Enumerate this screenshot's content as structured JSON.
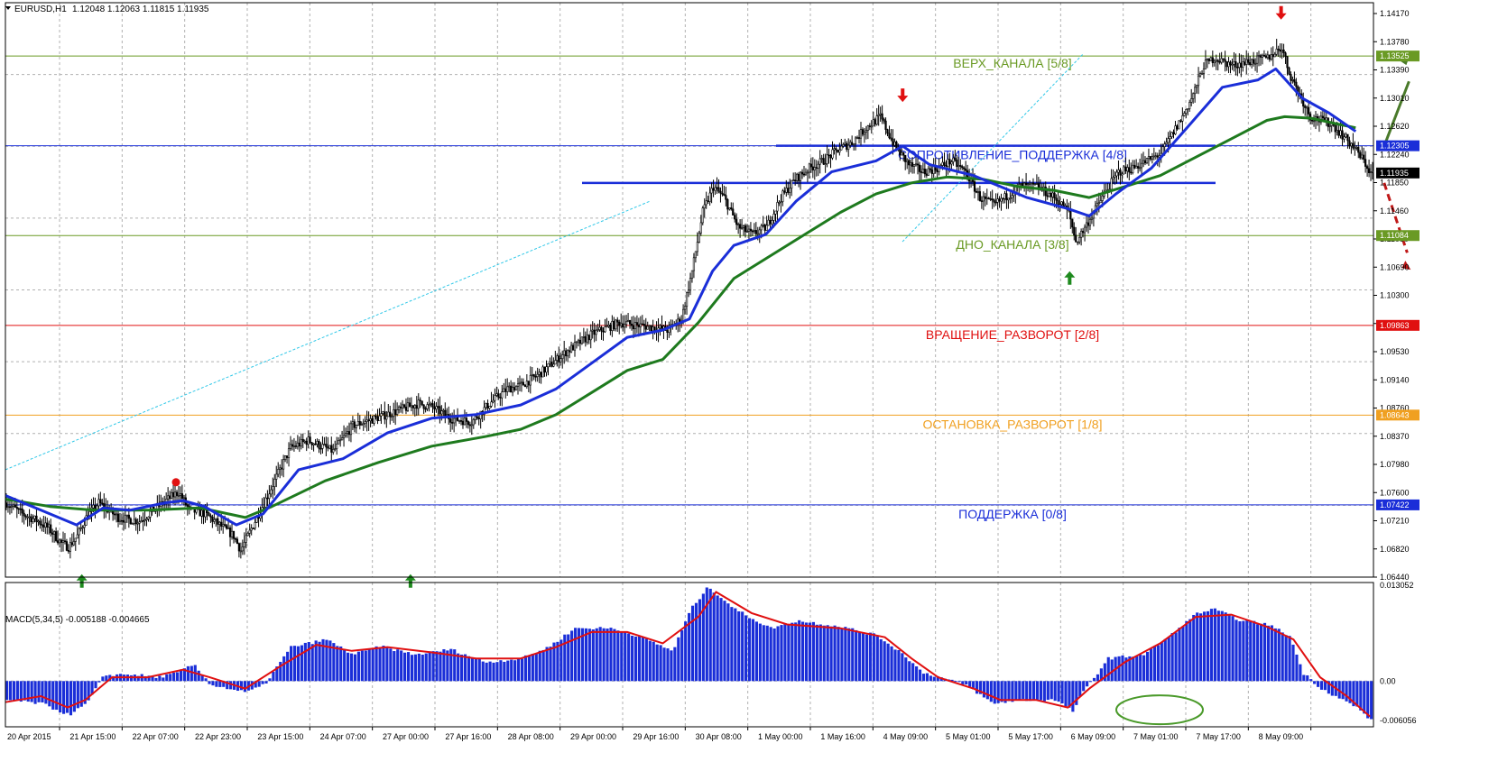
{
  "header": {
    "symbol": "EURUSD,H1",
    "ohlc": "1.12048 1.12063 1.11815 1.11935",
    "menu_icon": "triangle-down-icon"
  },
  "macd_header": "MACD(5,34,5) -0.005188 -0.004665",
  "chart_data": [
    {
      "type": "candlestick",
      "title": "EURUSD,H1",
      "ylim": [
        1.0644,
        1.1425
      ],
      "y_ticks": [
        "1.14170",
        "1.13780",
        "1.13390",
        "1.13010",
        "1.12620",
        "1.12240",
        "1.11850",
        "1.11460",
        "1.11080",
        "1.10690",
        "1.10300",
        "1.09920",
        "1.09530",
        "1.09140",
        "1.08760",
        "1.08370",
        "1.07980",
        "1.07600",
        "1.07210",
        "1.06820",
        "1.06440"
      ],
      "x_ticks": [
        "20 Apr 2015",
        "21 Apr 15:00",
        "22 Apr 07:00",
        "22 Apr 23:00",
        "23 Apr 15:00",
        "24 Apr 07:00",
        "27 Apr 00:00",
        "27 Apr 16:00",
        "28 Apr 08:00",
        "29 Apr 00:00",
        "29 Apr 16:00",
        "30 Apr 08:00",
        "1 May 00:00",
        "1 May 16:00",
        "4 May 09:00",
        "5 May 01:00",
        "5 May 17:00",
        "6 May 09:00",
        "7 May 01:00",
        "7 May 17:00",
        "8 May 09:00"
      ],
      "current_price": "1.11935",
      "close_path": [
        [
          0,
          1.0745
        ],
        [
          9,
          1.073
        ],
        [
          18,
          1.072
        ],
        [
          24,
          1.071
        ],
        [
          31,
          1.069
        ],
        [
          35,
          1.0685
        ],
        [
          40,
          1.07
        ],
        [
          45,
          1.0725
        ],
        [
          52,
          1.0745
        ],
        [
          63,
          1.0725
        ],
        [
          75,
          1.072
        ],
        [
          88,
          1.0745
        ],
        [
          97,
          1.076
        ],
        [
          103,
          1.0735
        ],
        [
          112,
          1.073
        ],
        [
          128,
          1.07
        ],
        [
          132,
          1.068
        ],
        [
          138,
          1.071
        ],
        [
          144,
          1.074
        ],
        [
          152,
          1.078
        ],
        [
          160,
          1.082
        ],
        [
          170,
          1.083
        ],
        [
          184,
          1.0815
        ],
        [
          195,
          1.085
        ],
        [
          208,
          1.086
        ],
        [
          220,
          1.087
        ],
        [
          232,
          1.088
        ],
        [
          240,
          1.0875
        ],
        [
          250,
          1.086
        ],
        [
          262,
          1.0855
        ],
        [
          272,
          1.088
        ],
        [
          282,
          1.09
        ],
        [
          290,
          1.0905
        ],
        [
          300,
          1.092
        ],
        [
          315,
          1.095
        ],
        [
          330,
          1.0975
        ],
        [
          345,
          1.099
        ],
        [
          360,
          1.0985
        ],
        [
          372,
          1.098
        ],
        [
          380,
          1.0995
        ],
        [
          386,
          1.106
        ],
        [
          392,
          1.114
        ],
        [
          398,
          1.1175
        ],
        [
          404,
          1.116
        ],
        [
          412,
          1.112
        ],
        [
          420,
          1.111
        ],
        [
          428,
          1.112
        ],
        [
          436,
          1.116
        ],
        [
          444,
          1.1185
        ],
        [
          452,
          1.12
        ],
        [
          460,
          1.121
        ],
        [
          468,
          1.1225
        ],
        [
          476,
          1.1235
        ],
        [
          484,
          1.1255
        ],
        [
          492,
          1.127
        ],
        [
          500,
          1.123
        ],
        [
          508,
          1.1205
        ],
        [
          516,
          1.1195
        ],
        [
          524,
          1.12
        ],
        [
          532,
          1.121
        ],
        [
          540,
          1.1195
        ],
        [
          548,
          1.116
        ],
        [
          556,
          1.115
        ],
        [
          562,
          1.116
        ],
        [
          570,
          1.1175
        ],
        [
          580,
          1.1175
        ],
        [
          590,
          1.116
        ],
        [
          598,
          1.114
        ],
        [
          602,
          1.11
        ],
        [
          606,
          1.1115
        ],
        [
          612,
          1.114
        ],
        [
          618,
          1.1165
        ],
        [
          626,
          1.1195
        ],
        [
          634,
          1.12
        ],
        [
          642,
          1.121
        ],
        [
          650,
          1.122
        ],
        [
          656,
          1.1245
        ],
        [
          662,
          1.127
        ],
        [
          668,
          1.13
        ],
        [
          674,
          1.134
        ],
        [
          680,
          1.135
        ],
        [
          690,
          1.134
        ],
        [
          700,
          1.1345
        ],
        [
          710,
          1.135
        ],
        [
          718,
          1.1365
        ],
        [
          722,
          1.133
        ],
        [
          728,
          1.13
        ],
        [
          734,
          1.127
        ],
        [
          740,
          1.1265
        ],
        [
          746,
          1.126
        ],
        [
          752,
          1.1245
        ],
        [
          758,
          1.123
        ],
        [
          764,
          1.121
        ],
        [
          768,
          1.1193
        ]
      ],
      "ema_blue_path": [
        [
          0,
          1.0755
        ],
        [
          20,
          1.0735
        ],
        [
          40,
          1.0715
        ],
        [
          55,
          1.0738
        ],
        [
          70,
          1.0735
        ],
        [
          90,
          1.0745
        ],
        [
          100,
          1.0748
        ],
        [
          112,
          1.074
        ],
        [
          130,
          1.0715
        ],
        [
          145,
          1.073
        ],
        [
          165,
          1.079
        ],
        [
          190,
          1.0805
        ],
        [
          215,
          1.084
        ],
        [
          240,
          1.086
        ],
        [
          265,
          1.0865
        ],
        [
          290,
          1.0878
        ],
        [
          310,
          1.09
        ],
        [
          330,
          1.0935
        ],
        [
          350,
          1.097
        ],
        [
          370,
          1.098
        ],
        [
          385,
          1.0995
        ],
        [
          398,
          1.106
        ],
        [
          410,
          1.1095
        ],
        [
          428,
          1.111
        ],
        [
          445,
          1.1155
        ],
        [
          465,
          1.1195
        ],
        [
          490,
          1.121
        ],
        [
          505,
          1.123
        ],
        [
          520,
          1.1205
        ],
        [
          545,
          1.119
        ],
        [
          560,
          1.1175
        ],
        [
          575,
          1.116
        ],
        [
          598,
          1.1145
        ],
        [
          610,
          1.1135
        ],
        [
          625,
          1.1165
        ],
        [
          645,
          1.12
        ],
        [
          665,
          1.1255
        ],
        [
          685,
          1.131
        ],
        [
          705,
          1.132
        ],
        [
          715,
          1.1335
        ],
        [
          730,
          1.1295
        ],
        [
          745,
          1.1275
        ],
        [
          760,
          1.125
        ]
      ],
      "ema_green_path": [
        [
          0,
          1.075
        ],
        [
          25,
          1.074
        ],
        [
          50,
          1.0735
        ],
        [
          80,
          1.0735
        ],
        [
          110,
          1.0738
        ],
        [
          135,
          1.0725
        ],
        [
          150,
          1.074
        ],
        [
          180,
          1.0775
        ],
        [
          210,
          1.08
        ],
        [
          240,
          1.0822
        ],
        [
          270,
          1.0835
        ],
        [
          290,
          1.0845
        ],
        [
          310,
          1.0865
        ],
        [
          330,
          1.0895
        ],
        [
          350,
          1.0925
        ],
        [
          370,
          1.094
        ],
        [
          390,
          1.099
        ],
        [
          410,
          1.105
        ],
        [
          430,
          1.108
        ],
        [
          450,
          1.111
        ],
        [
          470,
          1.114
        ],
        [
          490,
          1.1165
        ],
        [
          510,
          1.118
        ],
        [
          530,
          1.1188
        ],
        [
          550,
          1.1185
        ],
        [
          570,
          1.1175
        ],
        [
          590,
          1.117
        ],
        [
          610,
          1.116
        ],
        [
          630,
          1.1175
        ],
        [
          650,
          1.119
        ],
        [
          670,
          1.1215
        ],
        [
          690,
          1.124
        ],
        [
          710,
          1.1265
        ],
        [
          720,
          1.127
        ],
        [
          735,
          1.1268
        ],
        [
          750,
          1.126
        ],
        [
          760,
          1.1255
        ]
      ],
      "levels": [
        {
          "label": "ВЕРХ_КАНАЛА [5/8]",
          "price": 1.13525,
          "price_label": "1.13525",
          "color": "#6a9a24",
          "line_color": "#6a9a24",
          "text_color": "#6a9a24"
        },
        {
          "label": "СОПРОТИВЛЕНИЕ_ПОДДЕРЖКА [4/8]",
          "price": 1.12305,
          "price_label": "1.12305",
          "color": "#1a2ed8",
          "line_color": "#1a2ed8",
          "text_color": "#1a2ed8"
        },
        {
          "label": "ДНО_КАНАЛА [3/8]",
          "price": 1.11084,
          "price_label": "1.11084",
          "color": "#6a9a24",
          "line_color": "#6a9a24",
          "text_color": "#6a9a24"
        },
        {
          "label": "ВРАЩЕНИЕ_РАЗВОРОТ [2/8]",
          "price": 1.09863,
          "price_label": "1.09863",
          "color": "#e01010",
          "line_color": "#e01010",
          "text_color": "#e01010"
        },
        {
          "label": "ОСТАНОВКА_РАЗВОРОТ [1/8]",
          "price": 1.08643,
          "price_label": "1.08643",
          "color": "#f0a020",
          "line_color": "#f0a020",
          "text_color": "#f0a020"
        },
        {
          "label": "ПОДДЕРЖКА [0/8]",
          "price": 1.07422,
          "price_label": "1.07422",
          "color": "#1a2ed8",
          "line_color": "#1a2ed8",
          "text_color": "#1a2ed8"
        }
      ]
    },
    {
      "type": "histogram",
      "title": "MACD(5,34,5)",
      "ylim": [
        -0.006056,
        0.013052
      ],
      "y_ticks": [
        "0.013052",
        "0.00",
        "-0.006056"
      ],
      "histogram_path": [
        [
          0,
          -0.0025
        ],
        [
          20,
          -0.003
        ],
        [
          35,
          -0.0045
        ],
        [
          45,
          -0.003
        ],
        [
          55,
          0.0008
        ],
        [
          70,
          0.0009
        ],
        [
          85,
          0.0005
        ],
        [
          95,
          0.001
        ],
        [
          105,
          0.0022
        ],
        [
          115,
          -0.0005
        ],
        [
          135,
          -0.0015
        ],
        [
          145,
          -0.0005
        ],
        [
          160,
          0.0045
        ],
        [
          180,
          0.0055
        ],
        [
          195,
          0.0035
        ],
        [
          210,
          0.0046
        ],
        [
          230,
          0.0035
        ],
        [
          250,
          0.0042
        ],
        [
          270,
          0.0025
        ],
        [
          290,
          0.003
        ],
        [
          305,
          0.0045
        ],
        [
          320,
          0.007
        ],
        [
          340,
          0.007
        ],
        [
          355,
          0.006
        ],
        [
          375,
          0.004
        ],
        [
          385,
          0.0095
        ],
        [
          395,
          0.0125
        ],
        [
          410,
          0.0095
        ],
        [
          430,
          0.007
        ],
        [
          445,
          0.008
        ],
        [
          470,
          0.0072
        ],
        [
          490,
          0.006
        ],
        [
          505,
          0.0035
        ],
        [
          515,
          0.0012
        ],
        [
          540,
          -0.0005
        ],
        [
          555,
          -0.003
        ],
        [
          570,
          -0.0025
        ],
        [
          590,
          -0.0025
        ],
        [
          600,
          -0.004
        ],
        [
          605,
          -0.0018
        ],
        [
          620,
          0.003
        ],
        [
          640,
          0.0035
        ],
        [
          655,
          0.006
        ],
        [
          670,
          0.009
        ],
        [
          680,
          0.0095
        ],
        [
          695,
          0.008
        ],
        [
          710,
          0.0075
        ],
        [
          722,
          0.006
        ],
        [
          730,
          0.001
        ],
        [
          740,
          -0.001
        ],
        [
          760,
          -0.0035
        ],
        [
          768,
          -0.0052
        ]
      ],
      "signal_path": [
        [
          0,
          -0.0028
        ],
        [
          20,
          -0.002
        ],
        [
          35,
          -0.0035
        ],
        [
          45,
          -0.0025
        ],
        [
          60,
          0.0005
        ],
        [
          80,
          0.0005
        ],
        [
          100,
          0.0015
        ],
        [
          115,
          0.0005
        ],
        [
          135,
          -0.001
        ],
        [
          155,
          0.002
        ],
        [
          175,
          0.0048
        ],
        [
          195,
          0.004
        ],
        [
          215,
          0.0045
        ],
        [
          240,
          0.0038
        ],
        [
          265,
          0.003
        ],
        [
          290,
          0.003
        ],
        [
          310,
          0.0045
        ],
        [
          330,
          0.0065
        ],
        [
          350,
          0.0065
        ],
        [
          370,
          0.005
        ],
        [
          390,
          0.0085
        ],
        [
          400,
          0.0118
        ],
        [
          420,
          0.009
        ],
        [
          440,
          0.0075
        ],
        [
          470,
          0.007
        ],
        [
          495,
          0.0058
        ],
        [
          510,
          0.003
        ],
        [
          525,
          0.0005
        ],
        [
          545,
          -0.001
        ],
        [
          560,
          -0.0025
        ],
        [
          580,
          -0.0025
        ],
        [
          598,
          -0.0035
        ],
        [
          610,
          -0.001
        ],
        [
          630,
          0.0025
        ],
        [
          650,
          0.005
        ],
        [
          670,
          0.0085
        ],
        [
          690,
          0.0088
        ],
        [
          710,
          0.0072
        ],
        [
          725,
          0.0055
        ],
        [
          740,
          0.0005
        ],
        [
          755,
          -0.002
        ],
        [
          768,
          -0.0047
        ]
      ]
    }
  ]
}
